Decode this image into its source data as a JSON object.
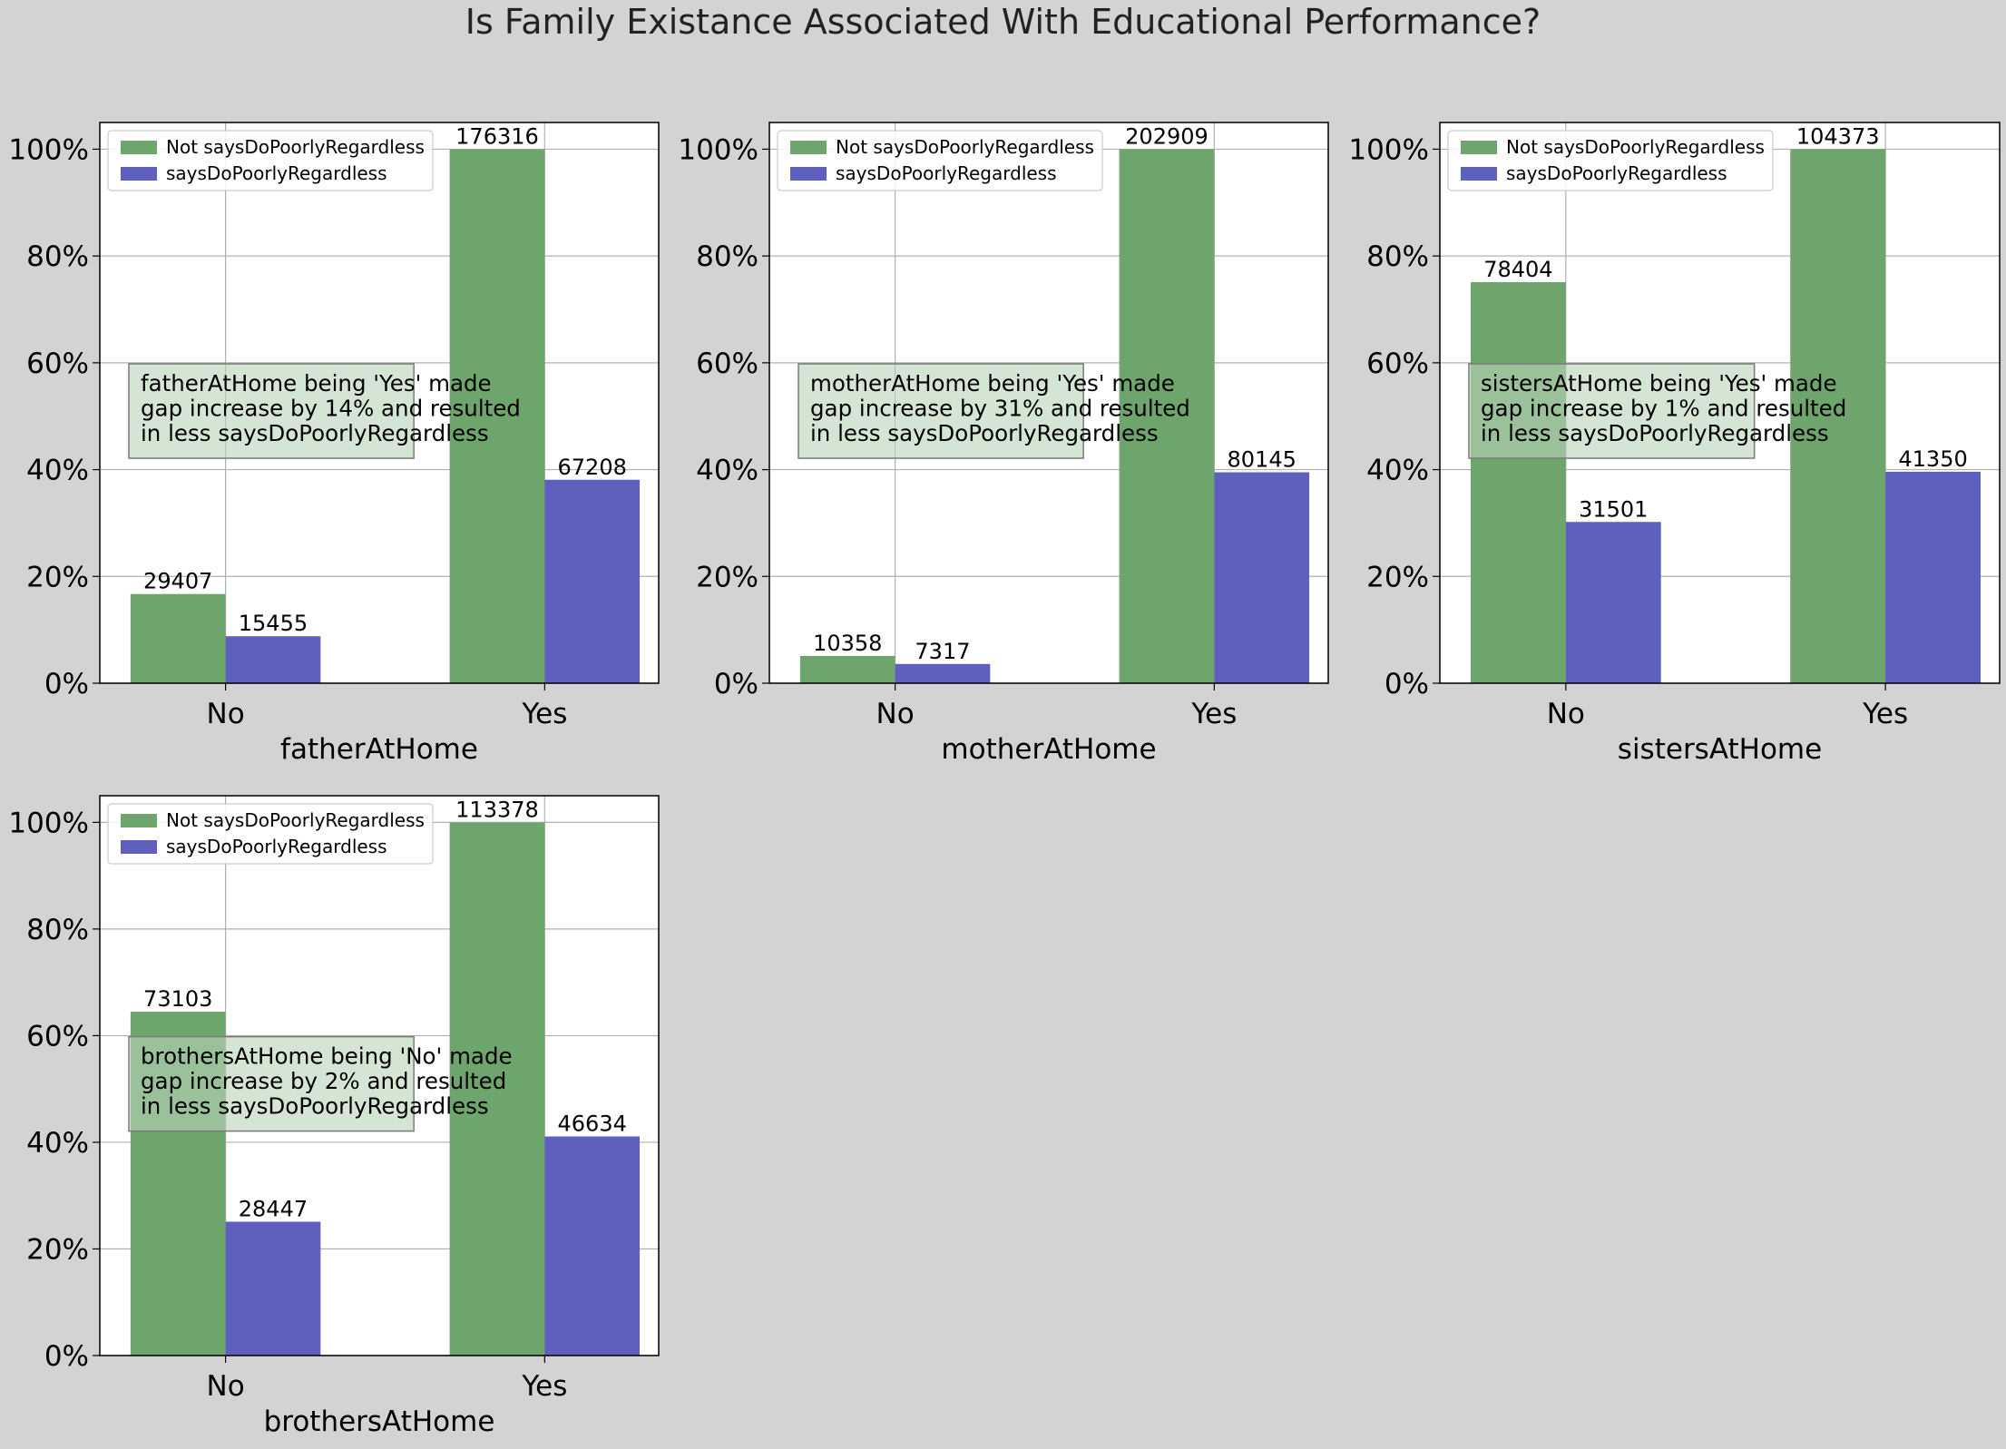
{
  "title": "Is Family Existance Associated With Educational Performance?",
  "colors": {
    "not_series": "#6ea56d",
    "says_series": "#5f60be",
    "annotation_fill": "#b7d4b7",
    "background": "#d3d3d3"
  },
  "chart_data": [
    {
      "type": "bar",
      "xlabel": "fatherAtHome",
      "ylabel": "",
      "categories": [
        "No",
        "Yes"
      ],
      "series": [
        {
          "name": "Not saysDoPoorlyRegardless",
          "values": [
            16.7,
            100
          ],
          "labels": [
            "29407",
            "176316"
          ]
        },
        {
          "name": "saysDoPoorlyRegardless",
          "values": [
            8.8,
            38.1
          ],
          "labels": [
            "15455",
            "67208"
          ]
        }
      ],
      "ylim": [
        0,
        105
      ],
      "yticks": [
        "0%",
        "20%",
        "40%",
        "60%",
        "80%",
        "100%"
      ],
      "grid": true,
      "legend": "top-left",
      "annotation": [
        "fatherAtHome being 'Yes' made",
        "gap increase by 14% and resulted",
        "in less saysDoPoorlyRegardless"
      ]
    },
    {
      "type": "bar",
      "xlabel": "motherAtHome",
      "ylabel": "",
      "categories": [
        "No",
        "Yes"
      ],
      "series": [
        {
          "name": "Not saysDoPoorlyRegardless",
          "values": [
            5.1,
            100
          ],
          "labels": [
            "10358",
            "202909"
          ]
        },
        {
          "name": "saysDoPoorlyRegardless",
          "values": [
            3.6,
            39.5
          ],
          "labels": [
            "7317",
            "80145"
          ]
        }
      ],
      "ylim": [
        0,
        105
      ],
      "yticks": [
        "0%",
        "20%",
        "40%",
        "60%",
        "80%",
        "100%"
      ],
      "grid": true,
      "legend": "top-left",
      "annotation": [
        "motherAtHome being 'Yes' made",
        "gap increase by 31% and resulted",
        "in less saysDoPoorlyRegardless"
      ]
    },
    {
      "type": "bar",
      "xlabel": "sistersAtHome",
      "ylabel": "",
      "categories": [
        "No",
        "Yes"
      ],
      "series": [
        {
          "name": "Not saysDoPoorlyRegardless",
          "values": [
            75.1,
            100
          ],
          "labels": [
            "78404",
            "104373"
          ]
        },
        {
          "name": "saysDoPoorlyRegardless",
          "values": [
            30.2,
            39.6
          ],
          "labels": [
            "31501",
            "41350"
          ]
        }
      ],
      "ylim": [
        0,
        105
      ],
      "yticks": [
        "0%",
        "20%",
        "40%",
        "60%",
        "80%",
        "100%"
      ],
      "grid": true,
      "legend": "top-left",
      "annotation": [
        "sistersAtHome being 'Yes' made",
        "gap increase by 1% and resulted",
        "in less saysDoPoorlyRegardless"
      ]
    },
    {
      "type": "bar",
      "xlabel": "brothersAtHome",
      "ylabel": "",
      "categories": [
        "No",
        "Yes"
      ],
      "series": [
        {
          "name": "Not saysDoPoorlyRegardless",
          "values": [
            64.5,
            100
          ],
          "labels": [
            "73103",
            "113378"
          ]
        },
        {
          "name": "saysDoPoorlyRegardless",
          "values": [
            25.1,
            41.1
          ],
          "labels": [
            "28447",
            "46634"
          ]
        }
      ],
      "ylim": [
        0,
        105
      ],
      "yticks": [
        "0%",
        "20%",
        "40%",
        "60%",
        "80%",
        "100%"
      ],
      "grid": true,
      "legend": "top-left",
      "annotation": [
        "brothersAtHome being 'No' made",
        "gap increase by 2% and resulted",
        "in less saysDoPoorlyRegardless"
      ]
    }
  ]
}
